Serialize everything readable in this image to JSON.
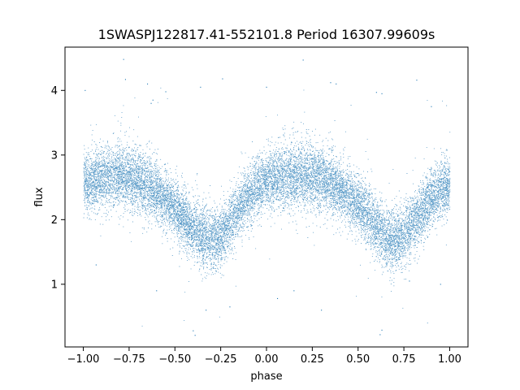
{
  "chart_data": {
    "type": "scatter",
    "title": "1SWASPJ122817.41-552101.8 Period 16307.99609s",
    "xlabel": "phase",
    "ylabel": "flux",
    "xlim": [
      -1.1,
      1.1
    ],
    "ylim": [
      0.03,
      4.67
    ],
    "grid": false,
    "legend": "none",
    "marker_color": "#1f77b4",
    "x_ticks": [
      -1.0,
      -0.75,
      -0.5,
      -0.25,
      0.0,
      0.25,
      0.5,
      0.75,
      1.0
    ],
    "x_tick_labels": [
      "−1.00",
      "−0.75",
      "−0.50",
      "−0.25",
      "0.00",
      "0.25",
      "0.50",
      "0.75",
      "1.00"
    ],
    "y_ticks": [
      1,
      2,
      3,
      4
    ],
    "y_tick_labels": [
      "1",
      "2",
      "3",
      "4"
    ],
    "series": [
      {
        "x": [
          -1.0,
          -0.95,
          -0.9,
          -0.85,
          -0.8,
          -0.75,
          -0.7,
          -0.65,
          -0.6,
          -0.55,
          -0.5,
          -0.45,
          -0.4,
          -0.35,
          -0.3,
          -0.25,
          -0.2,
          -0.15,
          -0.1,
          -0.05,
          0.0,
          0.05,
          0.1,
          0.15,
          0.2,
          0.25,
          0.3,
          0.35,
          0.4,
          0.45,
          0.5,
          0.55,
          0.6,
          0.65,
          0.7,
          0.75,
          0.8,
          0.85,
          0.9,
          0.95,
          1.0
        ],
        "y": [
          2.55,
          2.62,
          2.66,
          2.68,
          2.68,
          2.65,
          2.6,
          2.52,
          2.42,
          2.3,
          2.15,
          2.0,
          1.85,
          1.72,
          1.68,
          1.75,
          1.95,
          2.18,
          2.38,
          2.52,
          2.6,
          2.65,
          2.68,
          2.69,
          2.68,
          2.66,
          2.62,
          2.55,
          2.46,
          2.36,
          2.22,
          2.06,
          1.88,
          1.74,
          1.68,
          1.76,
          1.95,
          2.15,
          2.33,
          2.45,
          2.55
        ],
        "y_spread": [
          0.22,
          0.22,
          0.23,
          0.24,
          0.25,
          0.25,
          0.24,
          0.23,
          0.22,
          0.22,
          0.22,
          0.22,
          0.23,
          0.24,
          0.24,
          0.23,
          0.22,
          0.22,
          0.22,
          0.23,
          0.23,
          0.24,
          0.25,
          0.26,
          0.26,
          0.25,
          0.24,
          0.23,
          0.22,
          0.22,
          0.22,
          0.22,
          0.23,
          0.24,
          0.24,
          0.23,
          0.22,
          0.22,
          0.22,
          0.22,
          0.22
        ]
      }
    ],
    "outliers": [
      [
        -0.78,
        4.48
      ],
      [
        -0.77,
        4.17
      ],
      [
        -0.65,
        4.1
      ],
      [
        -0.62,
        3.85
      ],
      [
        -0.63,
        3.8
      ],
      [
        -0.55,
        3.98
      ],
      [
        -0.36,
        4.05
      ],
      [
        -0.24,
        4.18
      ],
      [
        0.0,
        4.05
      ],
      [
        0.2,
        4.47
      ],
      [
        0.35,
        4.12
      ],
      [
        0.38,
        4.1
      ],
      [
        0.6,
        3.97
      ],
      [
        0.63,
        3.95
      ],
      [
        0.82,
        4.16
      ],
      [
        -0.99,
        4.0
      ],
      [
        0.9,
        3.75
      ],
      [
        -0.4,
        0.28
      ],
      [
        -0.39,
        0.21
      ],
      [
        -0.33,
        0.6
      ],
      [
        0.63,
        0.29
      ],
      [
        0.62,
        0.22
      ],
      [
        0.3,
        0.6
      ],
      [
        0.06,
        0.78
      ],
      [
        0.78,
        1.05
      ],
      [
        -0.93,
        1.3
      ],
      [
        0.95,
        1.0
      ],
      [
        -0.2,
        0.65
      ],
      [
        0.15,
        0.9
      ],
      [
        -0.6,
        0.9
      ]
    ]
  }
}
